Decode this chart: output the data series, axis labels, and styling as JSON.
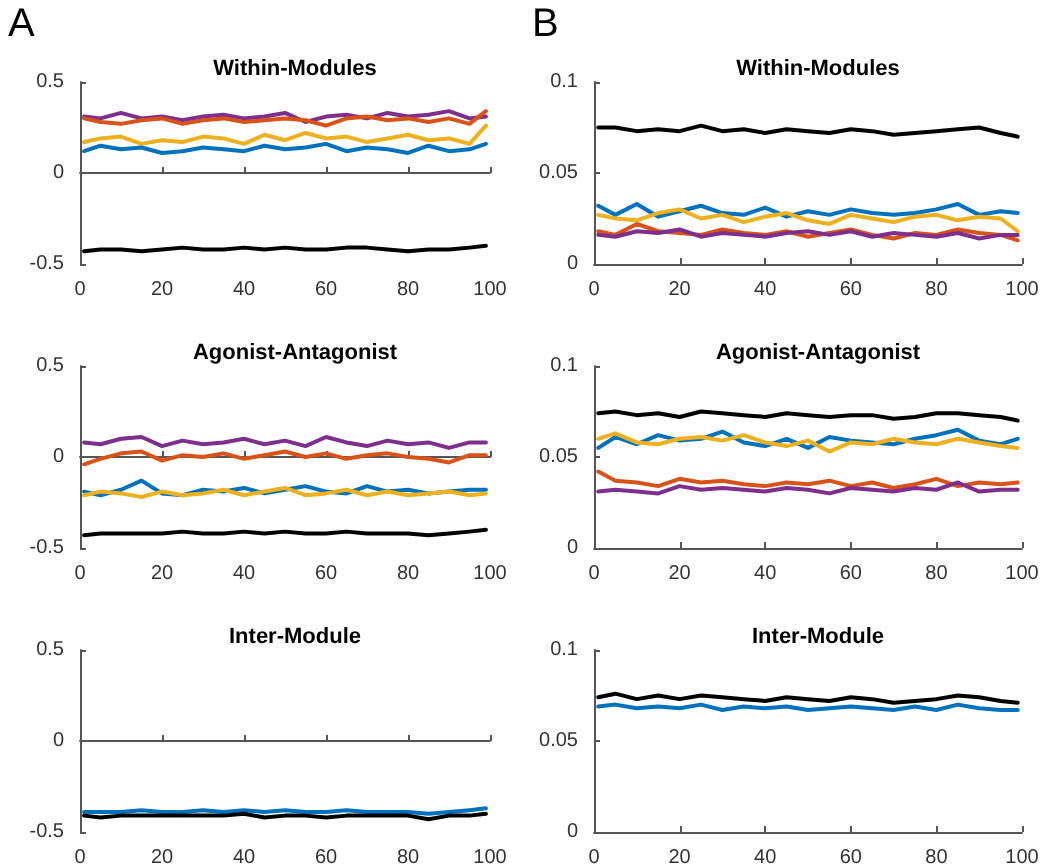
{
  "chart_data": [
    {
      "type": "line",
      "title": "Within-Modules",
      "annotations": [
        "A"
      ],
      "x": [
        1,
        5,
        10,
        15,
        20,
        25,
        30,
        35,
        40,
        45,
        50,
        55,
        60,
        65,
        70,
        75,
        80,
        85,
        90,
        95,
        99
      ],
      "xlim": [
        0,
        100
      ],
      "xticks": [
        0,
        20,
        40,
        60,
        80,
        100
      ],
      "ylim": [
        -0.5,
        0.5
      ],
      "yticks": [
        -0.5,
        0,
        0.5
      ],
      "series": [
        {
          "color": "#7e2f8e",
          "values": [
            0.31,
            0.3,
            0.33,
            0.3,
            0.31,
            0.29,
            0.31,
            0.32,
            0.3,
            0.31,
            0.33,
            0.28,
            0.31,
            0.32,
            0.3,
            0.33,
            0.31,
            0.32,
            0.34,
            0.3,
            0.31
          ]
        },
        {
          "color": "#d95319",
          "values": [
            0.3,
            0.28,
            0.27,
            0.29,
            0.3,
            0.27,
            0.29,
            0.3,
            0.28,
            0.29,
            0.3,
            0.29,
            0.26,
            0.3,
            0.31,
            0.29,
            0.3,
            0.28,
            0.3,
            0.27,
            0.34
          ]
        },
        {
          "color": "#edb120",
          "values": [
            0.17,
            0.19,
            0.2,
            0.16,
            0.18,
            0.17,
            0.2,
            0.19,
            0.16,
            0.21,
            0.18,
            0.22,
            0.19,
            0.2,
            0.17,
            0.19,
            0.21,
            0.18,
            0.19,
            0.16,
            0.26
          ]
        },
        {
          "color": "#0072bd",
          "values": [
            0.12,
            0.15,
            0.13,
            0.14,
            0.11,
            0.12,
            0.14,
            0.13,
            0.12,
            0.15,
            0.13,
            0.14,
            0.16,
            0.12,
            0.14,
            0.13,
            0.11,
            0.15,
            0.12,
            0.13,
            0.16
          ]
        },
        {
          "color": "#000000",
          "values": [
            -0.43,
            -0.42,
            -0.42,
            -0.43,
            -0.42,
            -0.41,
            -0.42,
            -0.42,
            -0.41,
            -0.42,
            -0.41,
            -0.42,
            -0.42,
            -0.41,
            -0.41,
            -0.42,
            -0.43,
            -0.42,
            -0.42,
            -0.41,
            -0.4
          ]
        }
      ]
    },
    {
      "type": "line",
      "title": "Within-Modules",
      "annotations": [
        "B"
      ],
      "x": [
        1,
        5,
        10,
        15,
        20,
        25,
        30,
        35,
        40,
        45,
        50,
        55,
        60,
        65,
        70,
        75,
        80,
        85,
        90,
        95,
        99
      ],
      "xlim": [
        0,
        100
      ],
      "xticks": [
        0,
        20,
        40,
        60,
        80,
        100
      ],
      "ylim": [
        0,
        0.1
      ],
      "yticks": [
        0,
        0.05,
        0.1
      ],
      "series": [
        {
          "color": "#000000",
          "values": [
            0.075,
            0.075,
            0.073,
            0.074,
            0.073,
            0.076,
            0.073,
            0.074,
            0.072,
            0.074,
            0.073,
            0.072,
            0.074,
            0.073,
            0.071,
            0.072,
            0.073,
            0.074,
            0.075,
            0.072,
            0.07
          ]
        },
        {
          "color": "#0072bd",
          "values": [
            0.032,
            0.027,
            0.033,
            0.026,
            0.029,
            0.032,
            0.028,
            0.027,
            0.031,
            0.026,
            0.029,
            0.027,
            0.03,
            0.028,
            0.027,
            0.028,
            0.03,
            0.033,
            0.027,
            0.029,
            0.028
          ]
        },
        {
          "color": "#edb120",
          "values": [
            0.027,
            0.025,
            0.024,
            0.028,
            0.03,
            0.025,
            0.027,
            0.023,
            0.026,
            0.028,
            0.024,
            0.022,
            0.027,
            0.025,
            0.023,
            0.026,
            0.027,
            0.024,
            0.026,
            0.025,
            0.018
          ]
        },
        {
          "color": "#d95319",
          "values": [
            0.018,
            0.016,
            0.022,
            0.018,
            0.017,
            0.016,
            0.019,
            0.017,
            0.016,
            0.018,
            0.015,
            0.017,
            0.019,
            0.016,
            0.014,
            0.017,
            0.016,
            0.019,
            0.017,
            0.016,
            0.013
          ]
        },
        {
          "color": "#7e2f8e",
          "values": [
            0.016,
            0.015,
            0.018,
            0.017,
            0.019,
            0.015,
            0.017,
            0.016,
            0.015,
            0.017,
            0.018,
            0.016,
            0.018,
            0.015,
            0.017,
            0.016,
            0.015,
            0.017,
            0.014,
            0.016,
            0.016
          ]
        }
      ]
    },
    {
      "type": "line",
      "title": "Agonist-Antagonist",
      "x": [
        1,
        5,
        10,
        15,
        20,
        25,
        30,
        35,
        40,
        45,
        50,
        55,
        60,
        65,
        70,
        75,
        80,
        85,
        90,
        95,
        99
      ],
      "xlim": [
        0,
        100
      ],
      "xticks": [
        0,
        20,
        40,
        60,
        80,
        100
      ],
      "ylim": [
        -0.5,
        0.5
      ],
      "yticks": [
        -0.5,
        0,
        0.5
      ],
      "series": [
        {
          "color": "#7e2f8e",
          "values": [
            0.08,
            0.07,
            0.1,
            0.11,
            0.06,
            0.09,
            0.07,
            0.08,
            0.1,
            0.07,
            0.09,
            0.06,
            0.11,
            0.08,
            0.06,
            0.09,
            0.07,
            0.08,
            0.05,
            0.08,
            0.08
          ]
        },
        {
          "color": "#d95319",
          "values": [
            -0.04,
            -0.01,
            0.02,
            0.03,
            -0.02,
            0.01,
            0.0,
            0.02,
            -0.01,
            0.01,
            0.03,
            0.0,
            0.02,
            -0.01,
            0.01,
            0.02,
            0.0,
            -0.01,
            -0.03,
            0.01,
            0.01
          ]
        },
        {
          "color": "#0072bd",
          "values": [
            -0.19,
            -0.21,
            -0.18,
            -0.13,
            -0.2,
            -0.21,
            -0.18,
            -0.19,
            -0.17,
            -0.2,
            -0.18,
            -0.16,
            -0.19,
            -0.2,
            -0.16,
            -0.19,
            -0.18,
            -0.2,
            -0.19,
            -0.18,
            -0.18
          ]
        },
        {
          "color": "#edb120",
          "values": [
            -0.21,
            -0.19,
            -0.2,
            -0.22,
            -0.19,
            -0.21,
            -0.2,
            -0.18,
            -0.21,
            -0.19,
            -0.17,
            -0.21,
            -0.2,
            -0.18,
            -0.21,
            -0.19,
            -0.21,
            -0.2,
            -0.19,
            -0.21,
            -0.2
          ]
        },
        {
          "color": "#000000",
          "values": [
            -0.43,
            -0.42,
            -0.42,
            -0.42,
            -0.42,
            -0.41,
            -0.42,
            -0.42,
            -0.41,
            -0.42,
            -0.41,
            -0.42,
            -0.42,
            -0.41,
            -0.42,
            -0.42,
            -0.42,
            -0.43,
            -0.42,
            -0.41,
            -0.4
          ]
        }
      ]
    },
    {
      "type": "line",
      "title": "Agonist-Antagonist",
      "x": [
        1,
        5,
        10,
        15,
        20,
        25,
        30,
        35,
        40,
        45,
        50,
        55,
        60,
        65,
        70,
        75,
        80,
        85,
        90,
        95,
        99
      ],
      "xlim": [
        0,
        100
      ],
      "xticks": [
        0,
        20,
        40,
        60,
        80,
        100
      ],
      "ylim": [
        0,
        0.1
      ],
      "yticks": [
        0,
        0.05,
        0.1
      ],
      "series": [
        {
          "color": "#000000",
          "values": [
            0.074,
            0.075,
            0.073,
            0.074,
            0.072,
            0.075,
            0.074,
            0.073,
            0.072,
            0.074,
            0.073,
            0.072,
            0.073,
            0.073,
            0.071,
            0.072,
            0.074,
            0.074,
            0.073,
            0.072,
            0.07
          ]
        },
        {
          "color": "#0072bd",
          "values": [
            0.055,
            0.061,
            0.057,
            0.062,
            0.059,
            0.06,
            0.064,
            0.058,
            0.056,
            0.06,
            0.055,
            0.061,
            0.059,
            0.058,
            0.057,
            0.06,
            0.062,
            0.065,
            0.059,
            0.057,
            0.06
          ]
        },
        {
          "color": "#edb120",
          "values": [
            0.06,
            0.063,
            0.058,
            0.057,
            0.06,
            0.061,
            0.059,
            0.062,
            0.058,
            0.056,
            0.059,
            0.053,
            0.058,
            0.057,
            0.06,
            0.058,
            0.057,
            0.06,
            0.058,
            0.056,
            0.055
          ]
        },
        {
          "color": "#d95319",
          "values": [
            0.042,
            0.037,
            0.036,
            0.034,
            0.038,
            0.036,
            0.037,
            0.035,
            0.034,
            0.036,
            0.035,
            0.037,
            0.034,
            0.036,
            0.033,
            0.035,
            0.038,
            0.034,
            0.036,
            0.035,
            0.036
          ]
        },
        {
          "color": "#7e2f8e",
          "values": [
            0.031,
            0.032,
            0.031,
            0.03,
            0.034,
            0.032,
            0.033,
            0.032,
            0.031,
            0.033,
            0.032,
            0.03,
            0.033,
            0.032,
            0.031,
            0.033,
            0.032,
            0.036,
            0.031,
            0.032,
            0.032
          ]
        }
      ]
    },
    {
      "type": "line",
      "title": "Inter-Module",
      "x": [
        1,
        5,
        10,
        15,
        20,
        25,
        30,
        35,
        40,
        45,
        50,
        55,
        60,
        65,
        70,
        75,
        80,
        85,
        90,
        95,
        99
      ],
      "xlim": [
        0,
        100
      ],
      "xticks": [
        0,
        20,
        40,
        60,
        80,
        100
      ],
      "ylim": [
        -0.5,
        0.5
      ],
      "yticks": [
        -0.5,
        0,
        0.5
      ],
      "series": [
        {
          "color": "#0072bd",
          "values": [
            -0.39,
            -0.39,
            -0.39,
            -0.38,
            -0.39,
            -0.39,
            -0.38,
            -0.39,
            -0.38,
            -0.39,
            -0.38,
            -0.39,
            -0.39,
            -0.38,
            -0.39,
            -0.39,
            -0.39,
            -0.4,
            -0.39,
            -0.38,
            -0.37
          ]
        },
        {
          "color": "#000000",
          "values": [
            -0.41,
            -0.42,
            -0.41,
            -0.41,
            -0.41,
            -0.41,
            -0.41,
            -0.41,
            -0.4,
            -0.42,
            -0.41,
            -0.41,
            -0.42,
            -0.41,
            -0.41,
            -0.41,
            -0.41,
            -0.43,
            -0.41,
            -0.41,
            -0.4
          ]
        }
      ]
    },
    {
      "type": "line",
      "title": "Inter-Module",
      "x": [
        1,
        5,
        10,
        15,
        20,
        25,
        30,
        35,
        40,
        45,
        50,
        55,
        60,
        65,
        70,
        75,
        80,
        85,
        90,
        95,
        99
      ],
      "xlim": [
        0,
        100
      ],
      "xticks": [
        0,
        20,
        40,
        60,
        80,
        100
      ],
      "ylim": [
        0,
        0.1
      ],
      "yticks": [
        0,
        0.05,
        0.1
      ],
      "series": [
        {
          "color": "#000000",
          "values": [
            0.074,
            0.076,
            0.073,
            0.075,
            0.073,
            0.075,
            0.074,
            0.073,
            0.072,
            0.074,
            0.073,
            0.072,
            0.074,
            0.073,
            0.071,
            0.072,
            0.073,
            0.075,
            0.074,
            0.072,
            0.071
          ]
        },
        {
          "color": "#0072bd",
          "values": [
            0.069,
            0.07,
            0.068,
            0.069,
            0.068,
            0.07,
            0.067,
            0.069,
            0.068,
            0.069,
            0.067,
            0.068,
            0.069,
            0.068,
            0.067,
            0.069,
            0.067,
            0.07,
            0.068,
            0.067,
            0.067
          ]
        }
      ]
    }
  ]
}
